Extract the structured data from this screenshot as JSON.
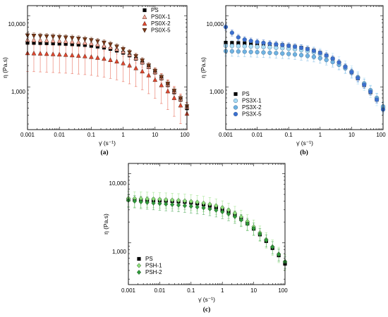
{
  "chart_data": [
    {
      "type": "scatter",
      "panel_label": "(a)",
      "xlabel": "γ̇ (s⁻¹)",
      "ylabel": "η (Pa.s)",
      "xscale": "log",
      "yscale": "log",
      "xlim": [
        0.001,
        100
      ],
      "ylim": [
        250,
        14000
      ],
      "x_ticks": [
        "0.001",
        "0.01",
        "0.1",
        "1",
        "10",
        "100"
      ],
      "y_ticks": [
        "1,000",
        "10,000"
      ],
      "legend_position": "top-right",
      "error_bars": true,
      "series": [
        {
          "name": "PS",
          "marker": "square",
          "color": "#000000",
          "x": [
            0.001,
            0.00158,
            0.00251,
            0.00398,
            0.00631,
            0.01,
            0.0158,
            0.0251,
            0.0398,
            0.0631,
            0.1,
            0.158,
            0.251,
            0.398,
            0.631,
            1,
            1.58,
            2.51,
            3.98,
            6.31,
            10,
            15.8,
            25.1,
            39.8,
            63.1,
            100
          ],
          "y": [
            4200,
            4180,
            4160,
            4140,
            4110,
            4080,
            4050,
            4000,
            3950,
            3900,
            3800,
            3700,
            3580,
            3430,
            3250,
            3030,
            2780,
            2500,
            2200,
            1900,
            1600,
            1320,
            1060,
            840,
            660,
            500
          ],
          "err": 0
        },
        {
          "name": "PS0X-1",
          "marker": "triangle",
          "color": "#f4a99c",
          "x": [
            0.001,
            0.00158,
            0.00251,
            0.00398,
            0.00631,
            0.01,
            0.0158,
            0.0251,
            0.0398,
            0.0631,
            0.1,
            0.158,
            0.251,
            0.398,
            0.631,
            1,
            1.58,
            2.51,
            3.98,
            6.31,
            10,
            15.8,
            25.1,
            39.8,
            63.1,
            100
          ],
          "y": [
            4600,
            4580,
            4550,
            4520,
            4480,
            4440,
            4400,
            4340,
            4270,
            4190,
            4090,
            3960,
            3800,
            3620,
            3400,
            3140,
            2860,
            2550,
            2230,
            1920,
            1620,
            1340,
            1080,
            860,
            670,
            520
          ],
          "err": 0.15
        },
        {
          "name": "PS0X-2",
          "marker": "triangle",
          "color": "#e2472f",
          "x": [
            0.001,
            0.00158,
            0.00251,
            0.00398,
            0.00631,
            0.01,
            0.0158,
            0.0251,
            0.0398,
            0.0631,
            0.1,
            0.158,
            0.251,
            0.398,
            0.631,
            1,
            1.58,
            2.51,
            3.98,
            6.31,
            10,
            15.8,
            25.1,
            39.8,
            63.1,
            100
          ],
          "y": [
            3000,
            2980,
            2960,
            2930,
            2900,
            2870,
            2840,
            2800,
            2760,
            2710,
            2650,
            2580,
            2500,
            2400,
            2290,
            2160,
            2010,
            1840,
            1660,
            1460,
            1260,
            1060,
            870,
            700,
            550,
            420
          ],
          "err": 0.45
        },
        {
          "name": "PS0X-5",
          "marker": "triangle-down",
          "color": "#7a3a1a",
          "x": [
            0.001,
            0.00158,
            0.00251,
            0.00398,
            0.00631,
            0.01,
            0.0158,
            0.0251,
            0.0398,
            0.0631,
            0.1,
            0.158,
            0.251,
            0.398,
            0.631,
            1,
            1.58,
            2.51,
            3.98,
            6.31,
            10,
            15.8,
            25.1,
            39.8,
            63.1,
            100
          ],
          "y": [
            5300,
            5250,
            5200,
            5150,
            5100,
            5030,
            4960,
            4880,
            4790,
            4680,
            4550,
            4390,
            4200,
            3970,
            3700,
            3390,
            3060,
            2710,
            2350,
            2000,
            1680,
            1380,
            1110,
            880,
            690,
            530
          ],
          "err": 0.1
        }
      ]
    },
    {
      "type": "scatter",
      "panel_label": "(b)",
      "xlabel": "γ̇ (s⁻¹)",
      "ylabel": "η (Pa.s)",
      "xscale": "log",
      "yscale": "log",
      "xlim": [
        0.001,
        100
      ],
      "ylim": [
        250,
        14000
      ],
      "x_ticks": [
        "0.001",
        "0.01",
        "0.1",
        "1",
        "10",
        "100"
      ],
      "y_ticks": [
        "1,000",
        "10,000"
      ],
      "legend_position": "bottom-left",
      "error_bars": true,
      "series": [
        {
          "name": "PS",
          "marker": "square",
          "color": "#000000",
          "x": [
            0.001,
            0.00158,
            0.00251,
            0.00398,
            0.00631,
            0.01,
            0.0158,
            0.0251,
            0.0398,
            0.0631,
            0.1,
            0.158,
            0.251,
            0.398,
            0.631,
            1,
            1.58,
            2.51,
            3.98,
            6.31,
            10,
            15.8,
            25.1,
            39.8,
            63.1,
            100
          ],
          "y": [
            4200,
            4180,
            4160,
            4140,
            4110,
            4080,
            4050,
            4000,
            3950,
            3900,
            3800,
            3700,
            3580,
            3430,
            3250,
            3030,
            2780,
            2500,
            2200,
            1900,
            1600,
            1320,
            1060,
            840,
            660,
            500
          ],
          "err": 0
        },
        {
          "name": "PS3X-1",
          "marker": "circle",
          "color": "#a8dcf4",
          "x": [
            0.001,
            0.00158,
            0.00251,
            0.00398,
            0.00631,
            0.01,
            0.0158,
            0.0251,
            0.0398,
            0.0631,
            0.1,
            0.158,
            0.251,
            0.398,
            0.631,
            1,
            1.58,
            2.51,
            3.98,
            6.31,
            10,
            15.8,
            25.1,
            39.8,
            63.1,
            100
          ],
          "y": [
            3800,
            3780,
            3760,
            3740,
            3710,
            3680,
            3650,
            3610,
            3570,
            3520,
            3460,
            3390,
            3300,
            3190,
            3060,
            2900,
            2710,
            2480,
            2220,
            1940,
            1650,
            1370,
            1110,
            880,
            680,
            510
          ],
          "err": 0.2
        },
        {
          "name": "PS3X-2",
          "marker": "circle",
          "color": "#6fb3e2",
          "x": [
            0.001,
            0.00158,
            0.00251,
            0.00398,
            0.00631,
            0.01,
            0.0158,
            0.0251,
            0.0398,
            0.0631,
            0.1,
            0.158,
            0.251,
            0.398,
            0.631,
            1,
            1.58,
            2.51,
            3.98,
            6.31,
            10,
            15.8,
            25.1,
            39.8,
            63.1,
            100
          ],
          "y": [
            3200,
            3180,
            3160,
            3140,
            3110,
            3090,
            3060,
            3030,
            3000,
            2960,
            2920,
            2870,
            2810,
            2740,
            2650,
            2540,
            2400,
            2240,
            2050,
            1830,
            1600,
            1360,
            1120,
            900,
            700,
            530
          ],
          "err": 0.15
        },
        {
          "name": "PS3X-5",
          "marker": "circle",
          "color": "#3c6fd0",
          "x": [
            0.001,
            0.00158,
            0.00251,
            0.00398,
            0.00631,
            0.01,
            0.0158,
            0.0251,
            0.0398,
            0.0631,
            0.1,
            0.158,
            0.251,
            0.398,
            0.631,
            1,
            1.58,
            2.51,
            3.98,
            6.31,
            10,
            15.8,
            25.1,
            39.8,
            63.1,
            100
          ],
          "y": [
            7000,
            5800,
            5000,
            4650,
            4450,
            4300,
            4180,
            4080,
            3990,
            3900,
            3800,
            3690,
            3560,
            3410,
            3230,
            3020,
            2780,
            2510,
            2220,
            1920,
            1620,
            1330,
            1070,
            850,
            660,
            480
          ],
          "err": 0.1
        }
      ]
    },
    {
      "type": "scatter",
      "panel_label": "(c)",
      "xlabel": "γ̇ (s⁻¹)",
      "ylabel": "η (Pa.s)",
      "xscale": "log",
      "yscale": "log",
      "xlim": [
        0.001,
        100
      ],
      "ylim": [
        250,
        14000
      ],
      "x_ticks": [
        "0.001",
        "0.01",
        "0.1",
        "1",
        "10",
        "100"
      ],
      "y_ticks": [
        "1,000",
        "10,000"
      ],
      "legend_position": "bottom-left",
      "error_bars": true,
      "series": [
        {
          "name": "PS",
          "marker": "square",
          "color": "#000000",
          "x": [
            0.001,
            0.00158,
            0.00251,
            0.00398,
            0.00631,
            0.01,
            0.0158,
            0.0251,
            0.0398,
            0.0631,
            0.1,
            0.158,
            0.251,
            0.398,
            0.631,
            1,
            1.58,
            2.51,
            3.98,
            6.31,
            10,
            15.8,
            25.1,
            39.8,
            63.1,
            100
          ],
          "y": [
            4200,
            4180,
            4160,
            4140,
            4110,
            4080,
            4050,
            4000,
            3950,
            3900,
            3800,
            3700,
            3580,
            3430,
            3250,
            3030,
            2780,
            2500,
            2200,
            1900,
            1600,
            1320,
            1060,
            840,
            660,
            500
          ],
          "err": 0
        },
        {
          "name": "PSH-1",
          "marker": "diamond",
          "color": "#8fe07a",
          "x": [
            0.001,
            0.00158,
            0.00251,
            0.00398,
            0.00631,
            0.01,
            0.0158,
            0.0251,
            0.0398,
            0.0631,
            0.1,
            0.158,
            0.251,
            0.398,
            0.631,
            1,
            1.58,
            2.51,
            3.98,
            6.31,
            10,
            15.8,
            25.1,
            39.8,
            63.1,
            100
          ],
          "y": [
            4400,
            4370,
            4340,
            4310,
            4280,
            4240,
            4200,
            4150,
            4100,
            4040,
            3960,
            3870,
            3750,
            3610,
            3440,
            3230,
            2980,
            2690,
            2370,
            2040,
            1710,
            1400,
            1120,
            880,
            690,
            540
          ],
          "err": 0.25
        },
        {
          "name": "PSH-2",
          "marker": "diamond",
          "color": "#2e9a3a",
          "x": [
            0.001,
            0.00158,
            0.00251,
            0.00398,
            0.00631,
            0.01,
            0.0158,
            0.0251,
            0.0398,
            0.0631,
            0.1,
            0.158,
            0.251,
            0.398,
            0.631,
            1,
            1.58,
            2.51,
            3.98,
            6.31,
            10,
            15.8,
            25.1,
            39.8,
            63.1,
            100
          ],
          "y": [
            4100,
            4000,
            3900,
            3820,
            3750,
            3690,
            3630,
            3570,
            3510,
            3440,
            3370,
            3290,
            3200,
            3090,
            2960,
            2800,
            2610,
            2390,
            2140,
            1880,
            1610,
            1340,
            1090,
            870,
            680,
            530
          ],
          "err": 0.2
        }
      ]
    }
  ]
}
